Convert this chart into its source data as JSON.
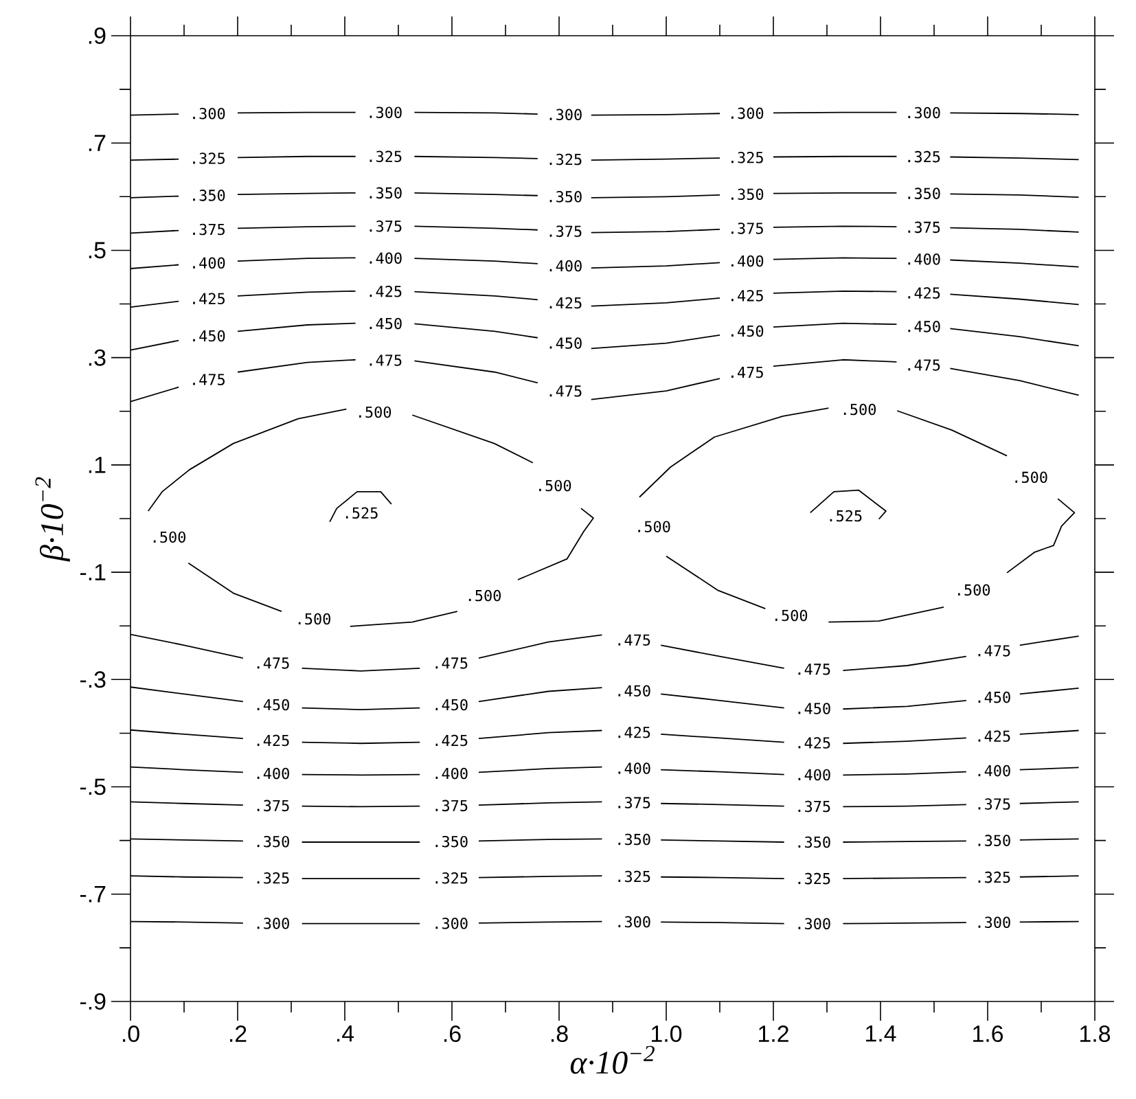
{
  "chart_data": {
    "type": "line",
    "xlabel": "α·10$^{−2}$",
    "ylabel": "β·10$^{−2}$",
    "xlim": [
      0,
      1.8
    ],
    "ylim": [
      -0.9,
      0.9
    ],
    "xticks": [
      {
        "value": 0,
        "label": ".0"
      },
      {
        "value": 0.2,
        "label": ".2"
      },
      {
        "value": 0.4,
        "label": ".4"
      },
      {
        "value": 0.6,
        "label": ".6"
      },
      {
        "value": 0.8,
        "label": ".8"
      },
      {
        "value": 1.0,
        "label": "1.0"
      },
      {
        "value": 1.2,
        "label": "1.2"
      },
      {
        "value": 1.4,
        "label": "1.4"
      },
      {
        "value": 1.6,
        "label": "1.6"
      },
      {
        "value": 1.8,
        "label": "1.8"
      }
    ],
    "yticks": [
      {
        "value": 0.9,
        "label": ".9"
      },
      {
        "value": 0.7,
        "label": ".7"
      },
      {
        "value": 0.5,
        "label": ".5"
      },
      {
        "value": 0.3,
        "label": ".3"
      },
      {
        "value": 0.1,
        "label": ".1"
      },
      {
        "value": -0.1,
        "label": "-.1"
      },
      {
        "value": -0.3,
        "label": "-.3"
      },
      {
        "value": -0.5,
        "label": "-.5"
      },
      {
        "value": -0.7,
        "label": "-.7"
      },
      {
        "value": -0.9,
        "label": "-.9"
      }
    ],
    "series": [
      {
        "name": ".300",
        "color": "#000000",
        "x": [
          0,
          0.09,
          0.144,
          0.2,
          0.33,
          0.42,
          0.474,
          0.53,
          0.68,
          0.76,
          0.81,
          0.86,
          1.0,
          1.1,
          1.149,
          1.2,
          1.33,
          1.43,
          1.479,
          1.53,
          1.66,
          1.77
        ],
        "values": [
          0.752,
          0.754,
          null,
          0.756,
          0.757,
          0.757,
          null,
          0.757,
          0.756,
          0.754,
          null,
          0.752,
          0.753,
          0.755,
          null,
          0.756,
          0.757,
          0.757,
          null,
          0.756,
          0.755,
          0.753
        ]
      },
      {
        "name": ".325",
        "color": "#000000",
        "x": [
          0,
          0.09,
          0.144,
          0.2,
          0.33,
          0.42,
          0.474,
          0.53,
          0.68,
          0.76,
          0.81,
          0.86,
          1.0,
          1.1,
          1.149,
          1.2,
          1.33,
          1.43,
          1.479,
          1.53,
          1.66,
          1.77
        ],
        "values": [
          0.668,
          0.67,
          null,
          0.673,
          0.675,
          0.675,
          null,
          0.675,
          0.673,
          0.671,
          null,
          0.668,
          0.67,
          0.672,
          null,
          0.674,
          0.675,
          0.675,
          null,
          0.674,
          0.672,
          0.669
        ]
      },
      {
        "name": ".350",
        "color": "#000000",
        "x": [
          0,
          0.09,
          0.144,
          0.2,
          0.33,
          0.42,
          0.474,
          0.53,
          0.68,
          0.76,
          0.81,
          0.86,
          1.0,
          1.1,
          1.149,
          1.2,
          1.33,
          1.43,
          1.479,
          1.53,
          1.66,
          1.77
        ],
        "values": [
          0.598,
          0.601,
          null,
          0.604,
          0.606,
          0.607,
          null,
          0.607,
          0.604,
          0.602,
          null,
          0.598,
          0.6,
          0.603,
          null,
          0.606,
          0.607,
          0.607,
          null,
          0.605,
          0.603,
          0.599
        ]
      },
      {
        "name": ".375",
        "color": "#000000",
        "x": [
          0,
          0.09,
          0.144,
          0.2,
          0.33,
          0.42,
          0.474,
          0.53,
          0.68,
          0.76,
          0.81,
          0.86,
          1.0,
          1.1,
          1.149,
          1.2,
          1.33,
          1.43,
          1.479,
          1.53,
          1.66,
          1.77
        ],
        "values": [
          0.532,
          0.537,
          null,
          0.541,
          0.544,
          0.545,
          null,
          0.545,
          0.541,
          0.538,
          null,
          0.533,
          0.535,
          0.539,
          null,
          0.543,
          0.545,
          0.544,
          null,
          0.542,
          0.539,
          0.534
        ]
      },
      {
        "name": ".400",
        "color": "#000000",
        "x": [
          0,
          0.09,
          0.144,
          0.2,
          0.33,
          0.42,
          0.474,
          0.53,
          0.68,
          0.76,
          0.81,
          0.86,
          1.0,
          1.1,
          1.149,
          1.2,
          1.33,
          1.43,
          1.479,
          1.53,
          1.66,
          1.77
        ],
        "values": [
          0.466,
          0.473,
          null,
          0.48,
          0.485,
          0.486,
          null,
          0.485,
          0.48,
          0.475,
          null,
          0.467,
          0.471,
          0.477,
          null,
          0.483,
          0.486,
          0.485,
          null,
          0.482,
          0.476,
          0.469
        ]
      },
      {
        "name": ".425",
        "color": "#000000",
        "x": [
          0,
          0.09,
          0.144,
          0.2,
          0.33,
          0.42,
          0.474,
          0.53,
          0.68,
          0.76,
          0.81,
          0.86,
          1.0,
          1.1,
          1.149,
          1.2,
          1.33,
          1.43,
          1.479,
          1.53,
          1.66,
          1.77
        ],
        "values": [
          0.394,
          0.405,
          null,
          0.415,
          0.422,
          0.424,
          null,
          0.423,
          0.415,
          0.408,
          null,
          0.396,
          0.402,
          0.411,
          null,
          0.42,
          0.424,
          0.423,
          null,
          0.418,
          0.409,
          0.399
        ]
      },
      {
        "name": ".450",
        "color": "#000000",
        "x": [
          0,
          0.09,
          0.144,
          0.2,
          0.33,
          0.42,
          0.474,
          0.53,
          0.68,
          0.76,
          0.81,
          0.86,
          1.0,
          1.1,
          1.149,
          1.2,
          1.33,
          1.43,
          1.479,
          1.53,
          1.66,
          1.77
        ],
        "values": [
          0.314,
          0.332,
          null,
          0.349,
          0.361,
          0.364,
          null,
          0.363,
          0.349,
          0.337,
          null,
          0.317,
          0.327,
          0.342,
          null,
          0.357,
          0.364,
          0.362,
          null,
          0.354,
          0.339,
          0.322
        ]
      },
      {
        "name": ".475",
        "color": "#000000",
        "x": [
          0,
          0.09,
          0.144,
          0.2,
          0.33,
          0.42,
          0.474,
          0.53,
          0.68,
          0.76,
          0.81,
          0.86,
          1.0,
          1.1,
          1.149,
          1.2,
          1.33,
          1.43,
          1.479,
          1.53,
          1.66,
          1.77
        ],
        "values": [
          0.218,
          0.245,
          null,
          0.273,
          0.291,
          0.296,
          null,
          0.294,
          0.273,
          0.253,
          null,
          0.222,
          0.238,
          0.261,
          null,
          0.284,
          0.296,
          0.292,
          null,
          0.28,
          0.257,
          0.23
        ]
      },
      {
        "name": ".300",
        "color": "#000000",
        "x": [
          0,
          0.1,
          0.21,
          0.264,
          0.32,
          0.43,
          0.54,
          0.597,
          0.65,
          0.78,
          0.88,
          0.938,
          0.99,
          1.1,
          1.22,
          1.274,
          1.33,
          1.45,
          1.56,
          1.61,
          1.66,
          1.77
        ],
        "values": [
          -0.751,
          -0.752,
          -0.754,
          null,
          -0.755,
          -0.755,
          -0.755,
          null,
          -0.754,
          -0.752,
          -0.751,
          null,
          -0.752,
          -0.753,
          -0.755,
          null,
          -0.755,
          -0.754,
          -0.753,
          null,
          -0.752,
          -0.751
        ]
      },
      {
        "name": ".325",
        "color": "#000000",
        "x": [
          0,
          0.1,
          0.21,
          0.264,
          0.32,
          0.43,
          0.54,
          0.597,
          0.65,
          0.78,
          0.88,
          0.938,
          0.99,
          1.1,
          1.22,
          1.274,
          1.33,
          1.45,
          1.56,
          1.61,
          1.66,
          1.77
        ],
        "values": [
          -0.666,
          -0.668,
          -0.669,
          null,
          -0.671,
          -0.671,
          -0.671,
          null,
          -0.669,
          -0.667,
          -0.666,
          null,
          -0.668,
          -0.669,
          -0.671,
          null,
          -0.671,
          -0.67,
          -0.669,
          null,
          -0.668,
          -0.666
        ]
      },
      {
        "name": ".350",
        "color": "#000000",
        "x": [
          0,
          0.1,
          0.21,
          0.264,
          0.32,
          0.43,
          0.54,
          0.597,
          0.65,
          0.78,
          0.88,
          0.938,
          0.99,
          1.1,
          1.22,
          1.274,
          1.33,
          1.45,
          1.56,
          1.61,
          1.66,
          1.77
        ],
        "values": [
          -0.597,
          -0.599,
          -0.601,
          null,
          -0.603,
          -0.603,
          -0.603,
          null,
          -0.601,
          -0.598,
          -0.597,
          null,
          -0.599,
          -0.601,
          -0.603,
          null,
          -0.603,
          -0.602,
          -0.601,
          null,
          -0.599,
          -0.597
        ]
      },
      {
        "name": ".375",
        "color": "#000000",
        "x": [
          0,
          0.1,
          0.21,
          0.264,
          0.32,
          0.43,
          0.54,
          0.597,
          0.65,
          0.78,
          0.88,
          0.938,
          0.99,
          1.1,
          1.22,
          1.274,
          1.33,
          1.45,
          1.56,
          1.61,
          1.66,
          1.77
        ],
        "values": [
          -0.528,
          -0.531,
          -0.534,
          null,
          -0.536,
          -0.537,
          -0.536,
          null,
          -0.534,
          -0.53,
          -0.528,
          null,
          -0.531,
          -0.533,
          -0.536,
          null,
          -0.537,
          -0.536,
          -0.533,
          null,
          -0.531,
          -0.528
        ]
      },
      {
        "name": ".400",
        "color": "#000000",
        "x": [
          0,
          0.1,
          0.21,
          0.264,
          0.32,
          0.43,
          0.54,
          0.597,
          0.65,
          0.78,
          0.88,
          0.938,
          0.99,
          1.1,
          1.22,
          1.274,
          1.33,
          1.45,
          1.56,
          1.61,
          1.66,
          1.77
        ],
        "values": [
          -0.463,
          -0.468,
          -0.473,
          null,
          -0.477,
          -0.478,
          -0.477,
          null,
          -0.473,
          -0.466,
          -0.463,
          null,
          -0.468,
          -0.472,
          -0.477,
          null,
          -0.478,
          -0.476,
          -0.472,
          null,
          -0.468,
          -0.464
        ]
      },
      {
        "name": ".425",
        "color": "#000000",
        "x": [
          0,
          0.1,
          0.21,
          0.264,
          0.32,
          0.43,
          0.54,
          0.597,
          0.65,
          0.78,
          0.88,
          0.938,
          0.99,
          1.1,
          1.22,
          1.274,
          1.33,
          1.45,
          1.56,
          1.61,
          1.66,
          1.77
        ],
        "values": [
          -0.394,
          -0.402,
          -0.41,
          null,
          -0.417,
          -0.419,
          -0.417,
          null,
          -0.41,
          -0.399,
          -0.395,
          null,
          -0.402,
          -0.409,
          -0.417,
          null,
          -0.419,
          -0.415,
          -0.409,
          null,
          -0.402,
          -0.395
        ]
      },
      {
        "name": ".450",
        "color": "#000000",
        "x": [
          0,
          0.1,
          0.21,
          0.264,
          0.32,
          0.43,
          0.54,
          0.597,
          0.65,
          0.78,
          0.88,
          0.938,
          0.99,
          1.1,
          1.22,
          1.274,
          1.33,
          1.45,
          1.56,
          1.61,
          1.66,
          1.77
        ],
        "values": [
          -0.314,
          -0.327,
          -0.341,
          null,
          -0.353,
          -0.356,
          -0.353,
          null,
          -0.341,
          -0.322,
          -0.315,
          null,
          -0.327,
          -0.339,
          -0.353,
          null,
          -0.355,
          -0.35,
          -0.339,
          null,
          -0.327,
          -0.316
        ]
      },
      {
        "name": ".475",
        "color": "#000000",
        "x": [
          0,
          0.1,
          0.21,
          0.264,
          0.32,
          0.43,
          0.54,
          0.597,
          0.65,
          0.78,
          0.88,
          0.938,
          0.99,
          1.1,
          1.22,
          1.274,
          1.33,
          1.45,
          1.56,
          1.61,
          1.66,
          1.77
        ],
        "values": [
          -0.216,
          -0.236,
          -0.26,
          null,
          -0.279,
          -0.284,
          -0.279,
          null,
          -0.26,
          -0.23,
          -0.217,
          null,
          -0.236,
          -0.257,
          -0.279,
          null,
          -0.283,
          -0.274,
          -0.257,
          null,
          -0.236,
          -0.219
        ]
      },
      {
        "name": ".500",
        "color": "#000000",
        "x": [
          0.033,
          0.059,
          0.11,
          0.192,
          0.313,
          0.403,
          0.454,
          0.526,
          0.679,
          0.751,
          0.79,
          0.841,
          0.864,
          0.846,
          0.815,
          0.723,
          0.659,
          0.61,
          0.526,
          0.41,
          0.341,
          0.282,
          0.192,
          0.108,
          null
        ],
        "values": [
          0.014,
          0.05,
          0.091,
          0.14,
          0.186,
          0.204,
          null,
          0.193,
          0.14,
          0.104,
          null,
          0.019,
          0.001,
          -0.024,
          -0.075,
          -0.114,
          null,
          -0.173,
          -0.193,
          -0.201,
          null,
          -0.173,
          -0.139,
          -0.083,
          null
        ]
      },
      {
        "name": ".500",
        "color": "#000000",
        "x": [
          0.95,
          1.008,
          1.09,
          1.218,
          1.303,
          1.359,
          1.431,
          1.533,
          1.636,
          1.679,
          1.731,
          1.762,
          1.738,
          1.723,
          1.687,
          1.636,
          1.572,
          1.518,
          1.397,
          1.303,
          1.231,
          1.185,
          1.097,
          1.0,
          null
        ],
        "values": [
          0.04,
          0.096,
          0.152,
          0.191,
          0.206,
          null,
          0.201,
          0.165,
          0.117,
          null,
          0.037,
          0.011,
          -0.014,
          -0.05,
          -0.063,
          -0.101,
          null,
          -0.165,
          -0.191,
          -0.193,
          null,
          -0.168,
          -0.134,
          -0.07,
          null
        ]
      },
      {
        "name": ".525",
        "color": "#000000",
        "x": [
          0.372,
          0.385,
          0.423,
          0.467,
          0.487,
          null
        ],
        "values": [
          -0.006,
          0.019,
          0.05,
          0.05,
          0.027,
          null
        ]
      },
      {
        "name": ".525",
        "color": "#000000",
        "x": [
          1.269,
          1.313,
          1.359,
          1.41,
          1.397,
          null
        ],
        "values": [
          0.011,
          0.05,
          0.053,
          0.014,
          -0.001,
          null
        ]
      }
    ]
  }
}
